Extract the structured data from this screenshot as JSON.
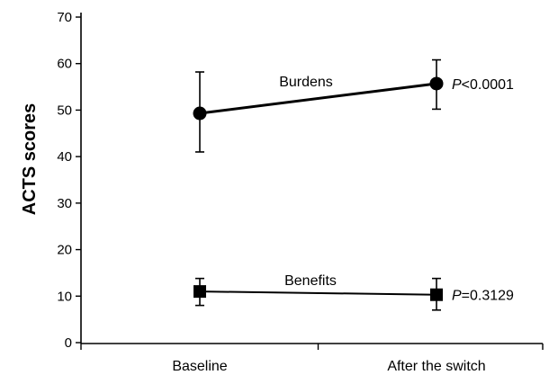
{
  "chart_data": {
    "type": "line",
    "ylabel": "ACTS scores",
    "xlabel": "",
    "ylim": [
      0,
      70
    ],
    "yticks": [
      0,
      10,
      20,
      30,
      40,
      50,
      60,
      70
    ],
    "categories": [
      "Baseline",
      "After the switch"
    ],
    "grid": false,
    "series": [
      {
        "name": "Burdens",
        "marker": "circle",
        "values": [
          49.3,
          55.7
        ],
        "error_low": [
          41.0,
          50.2
        ],
        "error_high": [
          58.2,
          60.8
        ],
        "p_prefix": "P",
        "p_rest": "<0.0001"
      },
      {
        "name": "Benefits",
        "marker": "square",
        "values": [
          11.0,
          10.3
        ],
        "error_low": [
          8.0,
          7.0
        ],
        "error_high": [
          13.8,
          13.8
        ],
        "p_prefix": "P",
        "p_rest": "=0.3129"
      }
    ]
  }
}
